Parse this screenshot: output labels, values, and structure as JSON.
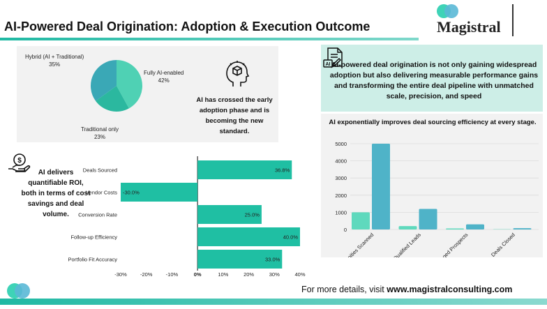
{
  "header": {
    "title": "AI-Powered Deal Origination: Adoption & Execution Outcome",
    "logo_text": "Magistral"
  },
  "colors": {
    "accent": "#1fbfa3",
    "pie_fully_ai": "#4fd1b4",
    "pie_traditional": "#2bb89f",
    "pie_hybrid": "#3aa8b6",
    "bar_teal": "#1fbfa3",
    "col_light": "#5fd9bd",
    "col_blue": "#4fb3c8",
    "head_bg": "#cdeee7",
    "panel_bg": "#f2f2f2"
  },
  "icons": {
    "adoption": "ai-cube-head-icon",
    "roi": "money-hand-icon",
    "document": "ai-document-icon"
  },
  "adoption_text": "AI has crossed the early adoption phase and is becoming the new standard.",
  "roi_text": "AI delivers quantifiable ROI, both in terms of cost savings and deal volume.",
  "right_header": "AI-powered deal origination is not only gaining widespread adoption but also delivering measurable performance gains and transforming the entire deal pipeline with unmatched scale, precision, and speed",
  "footer": {
    "prefix": "For more details, visit ",
    "url": "www.magistralconsulting.com"
  },
  "chart_data": [
    {
      "type": "pie",
      "categories": [
        "Fully AI-enabled",
        "Traditional only",
        "Hybrid (AI + Traditional)"
      ],
      "values": [
        42,
        23,
        35
      ],
      "labels": [
        "42%",
        "23%",
        "35%"
      ]
    },
    {
      "type": "bar",
      "orientation": "horizontal",
      "categories": [
        "Deals Sourced",
        "Vendor Costs",
        "Conversion Rate",
        "Follow-up Efficiency",
        "Portfolio Fit Accuracy"
      ],
      "values": [
        36.8,
        -30.0,
        25.0,
        40.0,
        33.0
      ],
      "data_labels": [
        "36.8%",
        "-30.0%",
        "25.0%",
        "40.0%",
        "33.0%"
      ],
      "xlim": [
        -30,
        40
      ],
      "xticks": [
        -30,
        -20,
        -10,
        0,
        10,
        20,
        30,
        40
      ],
      "xtick_labels": [
        "-30%",
        "-20%",
        "-10%",
        "0%",
        "10%",
        "20%",
        "30%",
        "40%"
      ]
    },
    {
      "type": "bar",
      "title": "AI exponentially improves deal sourcing efficiency at every stage.",
      "categories": [
        "Opportunities Scanned",
        "Qualified Leads",
        "Engaged Prospects",
        "Deals Closed"
      ],
      "series": [
        {
          "values": [
            1000,
            200,
            60,
            15
          ]
        },
        {
          "values": [
            5000,
            1200,
            300,
            75
          ]
        }
      ],
      "ylim": [
        0,
        5000
      ],
      "yticks": [
        0,
        1000,
        2000,
        3000,
        4000,
        5000
      ]
    }
  ]
}
